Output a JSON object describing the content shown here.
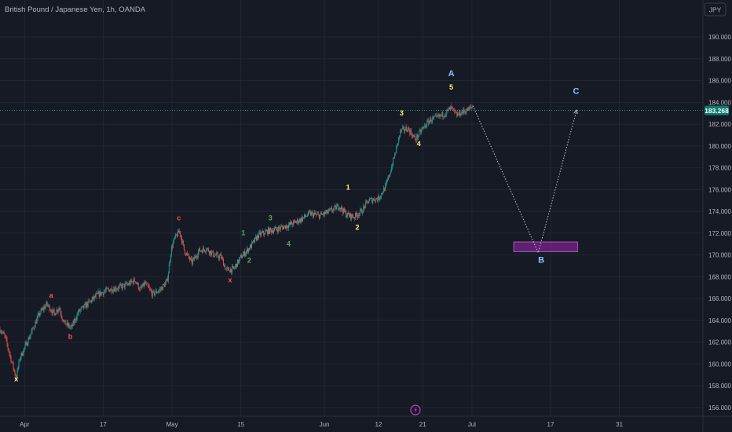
{
  "header": {
    "title": "British Pound / Japanese Yen, 1h, OANDA",
    "currency_button": "JPY"
  },
  "price_tag": "183.268",
  "colors": {
    "background": "#161a25",
    "grid": "#232734",
    "axis_text": "#b2b5be",
    "candle_up": "#26a69a",
    "candle_down": "#ef5350",
    "price_line": "#26a69a",
    "wave_red": "#f7525f",
    "wave_green": "#4caf50",
    "wave_yellow": "#fff176",
    "wave_blue": "#90bff9",
    "target_box": "#9c27b0"
  },
  "icons": {
    "lightning": "lightning-icon"
  },
  "chart_data": {
    "type": "candlestick",
    "title": "British Pound / Japanese Yen, 1h, OANDA",
    "ylim": [
      155.2,
      193.4
    ],
    "y_ticks": [
      156,
      158,
      160,
      162,
      164,
      166,
      168,
      170,
      172,
      174,
      176,
      178,
      180,
      182,
      184,
      186,
      188,
      190
    ],
    "x_ticks": [
      {
        "label": "Apr",
        "day": 14
      },
      {
        "label": "17",
        "day": 30
      },
      {
        "label": "May",
        "day": 44
      },
      {
        "label": "15",
        "day": 58
      },
      {
        "label": "Jun",
        "day": 75
      },
      {
        "label": "12",
        "day": 86
      },
      {
        "label": "21",
        "day": 95
      },
      {
        "label": "Jul",
        "day": 105
      },
      {
        "label": "17",
        "day": 121
      },
      {
        "label": "31",
        "day": 135
      }
    ],
    "xlim": [
      9,
      152
    ],
    "last_price": 183.268,
    "price_path": [
      [
        9,
        163.2
      ],
      [
        10,
        162.5
      ],
      [
        11.5,
        160.0
      ],
      [
        12.3,
        158.7
      ],
      [
        13,
        160.5
      ],
      [
        15,
        162.5
      ],
      [
        17,
        164.6
      ],
      [
        18.5,
        165.5
      ],
      [
        20,
        164.6
      ],
      [
        21,
        165.2
      ],
      [
        22,
        163.8
      ],
      [
        23.5,
        163.3
      ],
      [
        25,
        164.8
      ],
      [
        27,
        165.6
      ],
      [
        29,
        166.4
      ],
      [
        31,
        166.8
      ],
      [
        33,
        167.0
      ],
      [
        35,
        167.3
      ],
      [
        36.5,
        167.7
      ],
      [
        37.5,
        166.8
      ],
      [
        38.5,
        167.4
      ],
      [
        40,
        166.4
      ],
      [
        41.5,
        166.8
      ],
      [
        43,
        167.6
      ],
      [
        43.8,
        170.5
      ],
      [
        44.5,
        171.5
      ],
      [
        45.5,
        172.2
      ],
      [
        46.5,
        170.4
      ],
      [
        48,
        169.3
      ],
      [
        49.5,
        170.4
      ],
      [
        51,
        170.6
      ],
      [
        52.5,
        170.0
      ],
      [
        54,
        169.8
      ],
      [
        55,
        168.6
      ],
      [
        56.5,
        168.7
      ],
      [
        58,
        169.8
      ],
      [
        60,
        170.8
      ],
      [
        61.5,
        171.8
      ],
      [
        63.5,
        172.2
      ],
      [
        65.5,
        172.4
      ],
      [
        67.5,
        172.7
      ],
      [
        70,
        173.2
      ],
      [
        72,
        173.8
      ],
      [
        74,
        173.6
      ],
      [
        76,
        174.0
      ],
      [
        78,
        174.5
      ],
      [
        79.5,
        173.7
      ],
      [
        81,
        173.5
      ],
      [
        82.5,
        174.0
      ],
      [
        84,
        175.0
      ],
      [
        86,
        175.2
      ],
      [
        87.5,
        176.3
      ],
      [
        88.5,
        177.8
      ],
      [
        89.5,
        179.5
      ],
      [
        90.5,
        181.4
      ],
      [
        92,
        181.6
      ],
      [
        93.5,
        180.6
      ],
      [
        95,
        181.6
      ],
      [
        96.5,
        182.4
      ],
      [
        98,
        182.6
      ],
      [
        99.5,
        183.0
      ],
      [
        100.8,
        183.5
      ],
      [
        101.8,
        182.8
      ],
      [
        103,
        183.1
      ],
      [
        104.5,
        183.4
      ],
      [
        105.2,
        183.7
      ]
    ],
    "projection": [
      [
        105.2,
        183.7
      ],
      [
        118.5,
        170.2
      ],
      [
        126.3,
        183.3
      ]
    ],
    "target_box": {
      "day_start": 113.5,
      "day_end": 126.5,
      "price_low": 170.3,
      "price_high": 171.2
    },
    "wave_labels": [
      {
        "text": "x",
        "day": 12.3,
        "price": 158.4,
        "color": "wave_yellow"
      },
      {
        "text": "a",
        "day": 19.4,
        "price": 166.1,
        "color": "wave_red"
      },
      {
        "text": "b",
        "day": 23.3,
        "price": 162.3,
        "color": "wave_red"
      },
      {
        "text": "c",
        "day": 45.4,
        "price": 173.2,
        "color": "wave_red"
      },
      {
        "text": "x",
        "day": 55.8,
        "price": 167.5,
        "color": "wave_red"
      },
      {
        "text": "1",
        "day": 58.5,
        "price": 171.8,
        "color": "wave_green"
      },
      {
        "text": "2",
        "day": 59.7,
        "price": 169.3,
        "color": "wave_green"
      },
      {
        "text": "3",
        "day": 64.0,
        "price": 173.2,
        "color": "wave_green"
      },
      {
        "text": "4",
        "day": 67.7,
        "price": 170.8,
        "color": "wave_green"
      },
      {
        "text": "1",
        "day": 79.8,
        "price": 176.0,
        "color": "wave_yellow"
      },
      {
        "text": "2",
        "day": 81.7,
        "price": 172.3,
        "color": "wave_yellow"
      },
      {
        "text": "3",
        "day": 90.7,
        "price": 182.8,
        "color": "wave_yellow"
      },
      {
        "text": "4",
        "day": 94.2,
        "price": 180.0,
        "color": "wave_yellow"
      },
      {
        "text": "5",
        "day": 100.8,
        "price": 185.2,
        "color": "wave_yellow"
      },
      {
        "text": "A",
        "day": 100.8,
        "price": 186.4,
        "color": "wave_blue"
      },
      {
        "text": "B",
        "day": 119.1,
        "price": 169.3,
        "color": "wave_blue"
      },
      {
        "text": "C",
        "day": 126.2,
        "price": 184.8,
        "color": "wave_blue"
      }
    ]
  }
}
